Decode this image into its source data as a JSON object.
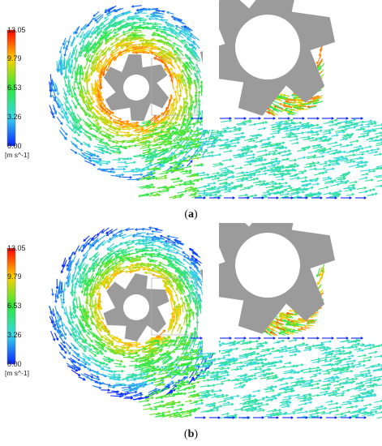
{
  "colorbar": {
    "ticks": [
      "13.05",
      "9.79",
      "6.53",
      "3.26",
      "0.00"
    ],
    "unit": "[m s^-1]",
    "colors": [
      "#ff0000",
      "#ffd000",
      "#2ee83c",
      "#36d8e8",
      "#0b22ff"
    ]
  },
  "panels": [
    {
      "caption_open": "(",
      "caption_letter": "a",
      "caption_close": ")"
    },
    {
      "caption_open": "(",
      "caption_letter": "b",
      "caption_close": ")"
    }
  ],
  "colors": {
    "impeller": "#9b9b9b",
    "background": "#ffffff"
  }
}
